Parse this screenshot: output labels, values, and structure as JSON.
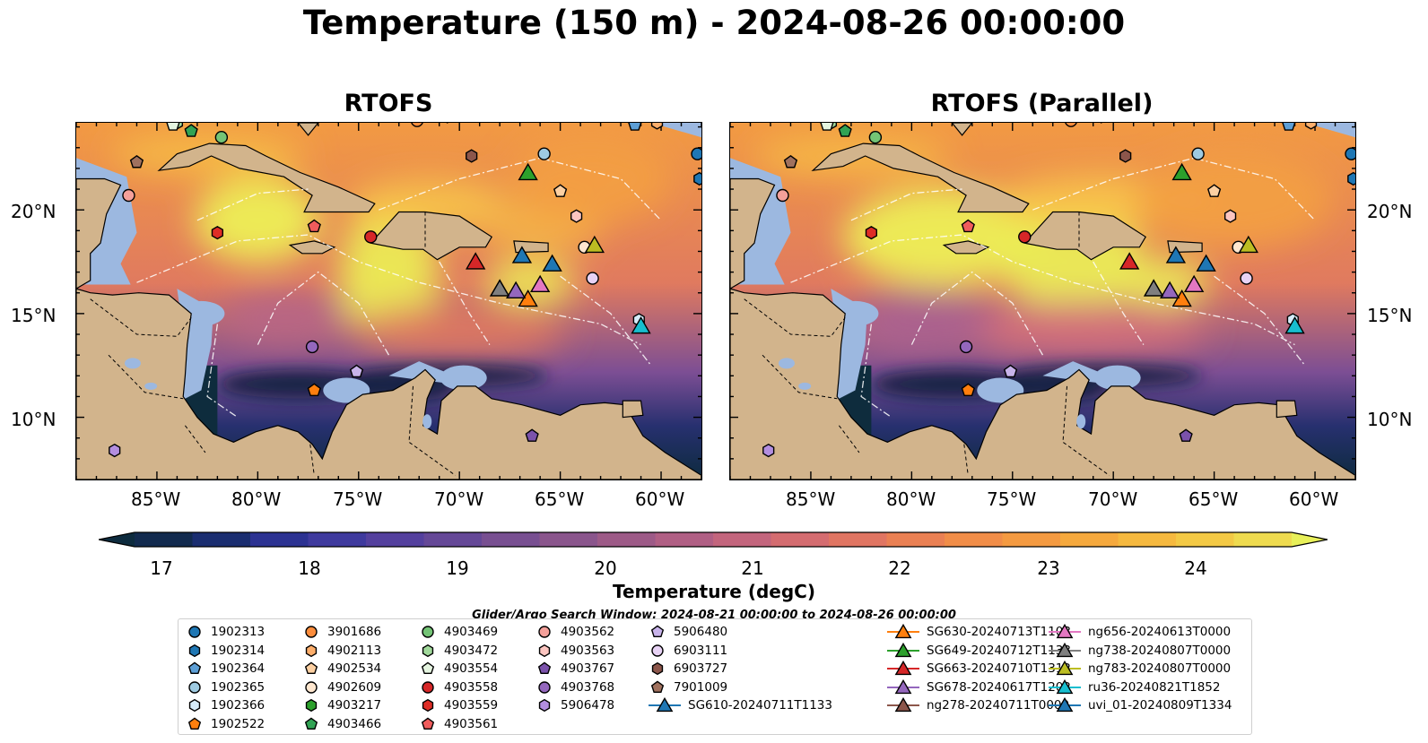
{
  "title": "Temperature (150 m) - 2024-08-26 00:00:00",
  "panels": [
    {
      "title": "RTOFS",
      "variant": "main"
    },
    {
      "title": "RTOFS (Parallel)",
      "variant": "parallel"
    }
  ],
  "axes": {
    "lon_ticks": [
      "85°W",
      "80°W",
      "75°W",
      "70°W",
      "65°W",
      "60°W"
    ],
    "lat_ticks": [
      "20°N",
      "15°N",
      "10°N"
    ]
  },
  "colorbar": {
    "label": "Temperature (degC)",
    "ticks": [
      "17",
      "18",
      "19",
      "20",
      "21",
      "22",
      "23",
      "24"
    ],
    "range": [
      17,
      24.5
    ],
    "colors": [
      "#0d2b3e",
      "#122a4e",
      "#1a2d70",
      "#2c3292",
      "#3f3a9e",
      "#54409e",
      "#654897",
      "#784f91",
      "#8a558c",
      "#9d5a87",
      "#b05f84",
      "#c3657d",
      "#d46c70",
      "#e07562",
      "#ea8053",
      "#f18d48",
      "#f49a41",
      "#f6a93d",
      "#f6b93f",
      "#f3c945",
      "#efdb4f",
      "#e8f059"
    ]
  },
  "search_window": "Glider/Argo Search Window: 2024-08-21 00:00:00 to 2024-08-26 00:00:00",
  "legend": [
    {
      "label": "1902313",
      "color": "#1f77b4",
      "marker": "circle"
    },
    {
      "label": "1902314",
      "color": "#1f77b4",
      "marker": "hexagon"
    },
    {
      "label": "1902364",
      "color": "#5d9fd6",
      "marker": "pentagon"
    },
    {
      "label": "1902365",
      "color": "#9ecae1",
      "marker": "circle"
    },
    {
      "label": "1902366",
      "color": "#d6ecfa",
      "marker": "hexagon"
    },
    {
      "label": "1902522",
      "color": "#ff7f0e",
      "marker": "pentagon"
    },
    {
      "label": "3901686",
      "color": "#fd8d3c",
      "marker": "circle"
    },
    {
      "label": "4902113",
      "color": "#fdae6b",
      "marker": "hexagon"
    },
    {
      "label": "4902534",
      "color": "#fdd0a2",
      "marker": "pentagon"
    },
    {
      "label": "4902609",
      "color": "#ffe7cf",
      "marker": "circle"
    },
    {
      "label": "4903217",
      "color": "#2ca02c",
      "marker": "hexagon"
    },
    {
      "label": "4903466",
      "color": "#31a354",
      "marker": "pentagon"
    },
    {
      "label": "4903469",
      "color": "#74c476",
      "marker": "circle"
    },
    {
      "label": "4903472",
      "color": "#a1d99b",
      "marker": "hexagon"
    },
    {
      "label": "4903554",
      "color": "#e5f5e0",
      "marker": "pentagon"
    },
    {
      "label": "4903558",
      "color": "#d62728",
      "marker": "circle"
    },
    {
      "label": "4903559",
      "color": "#de2d26",
      "marker": "hexagon"
    },
    {
      "label": "4903561",
      "color": "#f05c5c",
      "marker": "pentagon"
    },
    {
      "label": "4903562",
      "color": "#f4a09a",
      "marker": "circle"
    },
    {
      "label": "4903563",
      "color": "#fcc5c0",
      "marker": "hexagon"
    },
    {
      "label": "4903767",
      "color": "#7b52ab",
      "marker": "pentagon"
    },
    {
      "label": "4903768",
      "color": "#9467bd",
      "marker": "circle"
    },
    {
      "label": "5906478",
      "color": "#b38ee0",
      "marker": "hexagon"
    },
    {
      "label": "5906480",
      "color": "#c8b3ea",
      "marker": "pentagon"
    },
    {
      "label": "6903111",
      "color": "#e8d3f5",
      "marker": "circle"
    },
    {
      "label": "6903727",
      "color": "#8c564b",
      "marker": "hexagon"
    },
    {
      "label": "7901009",
      "color": "#a0715e",
      "marker": "pentagon"
    },
    {
      "label": "SG610-20240711T1133",
      "color": "#1f77b4",
      "marker": "triangle"
    },
    {
      "label": "SG630-20240713T1103",
      "color": "#ff7f0e",
      "marker": "triangle"
    },
    {
      "label": "SG649-20240712T1133",
      "color": "#2ca02c",
      "marker": "triangle"
    },
    {
      "label": "SG663-20240710T1312",
      "color": "#d62728",
      "marker": "triangle"
    },
    {
      "label": "SG678-20240617T1202",
      "color": "#9467bd",
      "marker": "triangle"
    },
    {
      "label": "ng278-20240711T0000",
      "color": "#8c564b",
      "marker": "triangle"
    },
    {
      "label": "ng656-20240613T0000",
      "color": "#e377c2",
      "marker": "triangle"
    },
    {
      "label": "ng738-20240807T0000",
      "color": "#7f7f7f",
      "marker": "triangle"
    },
    {
      "label": "ng783-20240807T0000",
      "color": "#bcbd22",
      "marker": "triangle"
    },
    {
      "label": "ru36-20240821T1852",
      "color": "#17becf",
      "marker": "triangle"
    },
    {
      "label": "uvi_01-20240809T1334",
      "color": "#1f77b4",
      "marker": "triangle"
    }
  ],
  "argo_points": [
    {
      "id": "1902313",
      "lon": -58.2,
      "lat": 22.7
    },
    {
      "id": "1902314",
      "lon": -58.1,
      "lat": 21.5
    },
    {
      "id": "1902364",
      "lon": -61.3,
      "lat": 24.1
    },
    {
      "id": "1902365",
      "lon": -65.8,
      "lat": 22.7
    },
    {
      "id": "1902366",
      "lon": -61.1,
      "lat": 14.7
    },
    {
      "id": "1902522",
      "lon": -77.2,
      "lat": 11.3
    },
    {
      "id": "3901686",
      "lon": -72.1,
      "lat": 24.3
    },
    {
      "id": "4902113",
      "lon": -60.2,
      "lat": 24.2
    },
    {
      "id": "4902534",
      "lon": -65.0,
      "lat": 20.9
    },
    {
      "id": "4902609",
      "lon": -63.8,
      "lat": 18.2
    },
    {
      "id": "4903217",
      "lon": -70.6,
      "lat": 24.5
    },
    {
      "id": "4903466",
      "lon": -83.3,
      "lat": 23.8
    },
    {
      "id": "4903469",
      "lon": -81.8,
      "lat": 23.5
    },
    {
      "id": "4903472",
      "lon": -84.0,
      "lat": 24.2
    },
    {
      "id": "4903554",
      "lon": -84.2,
      "lat": 24.1
    },
    {
      "id": "4903558",
      "lon": -74.4,
      "lat": 18.7
    },
    {
      "id": "4903559",
      "lon": -82.0,
      "lat": 18.9
    },
    {
      "id": "4903561",
      "lon": -77.2,
      "lat": 19.2
    },
    {
      "id": "4903562",
      "lon": -86.4,
      "lat": 20.7
    },
    {
      "id": "4903563",
      "lon": -64.2,
      "lat": 19.7
    },
    {
      "id": "4903767",
      "lon": -66.4,
      "lat": 9.1
    },
    {
      "id": "4903768",
      "lon": -77.3,
      "lat": 13.4
    },
    {
      "id": "5906478",
      "lon": -87.1,
      "lat": 8.4
    },
    {
      "id": "5906480",
      "lon": -75.1,
      "lat": 12.2
    },
    {
      "id": "6903111",
      "lon": -63.4,
      "lat": 16.7
    },
    {
      "id": "6903727",
      "lon": -69.4,
      "lat": 22.6
    },
    {
      "id": "7901009",
      "lon": -86.0,
      "lat": 22.3
    }
  ],
  "glider_points": [
    {
      "id": "SG610-20240711T1133",
      "lon": -66.9,
      "lat": 17.8
    },
    {
      "id": "SG630-20240713T1103",
      "lon": -66.6,
      "lat": 15.7
    },
    {
      "id": "SG649-20240712T1133",
      "lon": -66.6,
      "lat": 21.8
    },
    {
      "id": "SG663-20240710T1312",
      "lon": -69.2,
      "lat": 17.5
    },
    {
      "id": "SG678-20240617T1202",
      "lon": -67.2,
      "lat": 16.1
    },
    {
      "id": "ng278-20240711T0000",
      "lon": -68.0,
      "lat": 16.2
    },
    {
      "id": "ng656-20240613T0000",
      "lon": -66.0,
      "lat": 16.4
    },
    {
      "id": "ng738-20240807T0000",
      "lon": -68.0,
      "lat": 16.2
    },
    {
      "id": "ng783-20240807T0000",
      "lon": -63.3,
      "lat": 18.3
    },
    {
      "id": "ru36-20240821T1852",
      "lon": -61.0,
      "lat": 14.4
    },
    {
      "id": "uvi_01-20240809T1334",
      "lon": -65.4,
      "lat": 17.4
    }
  ]
}
